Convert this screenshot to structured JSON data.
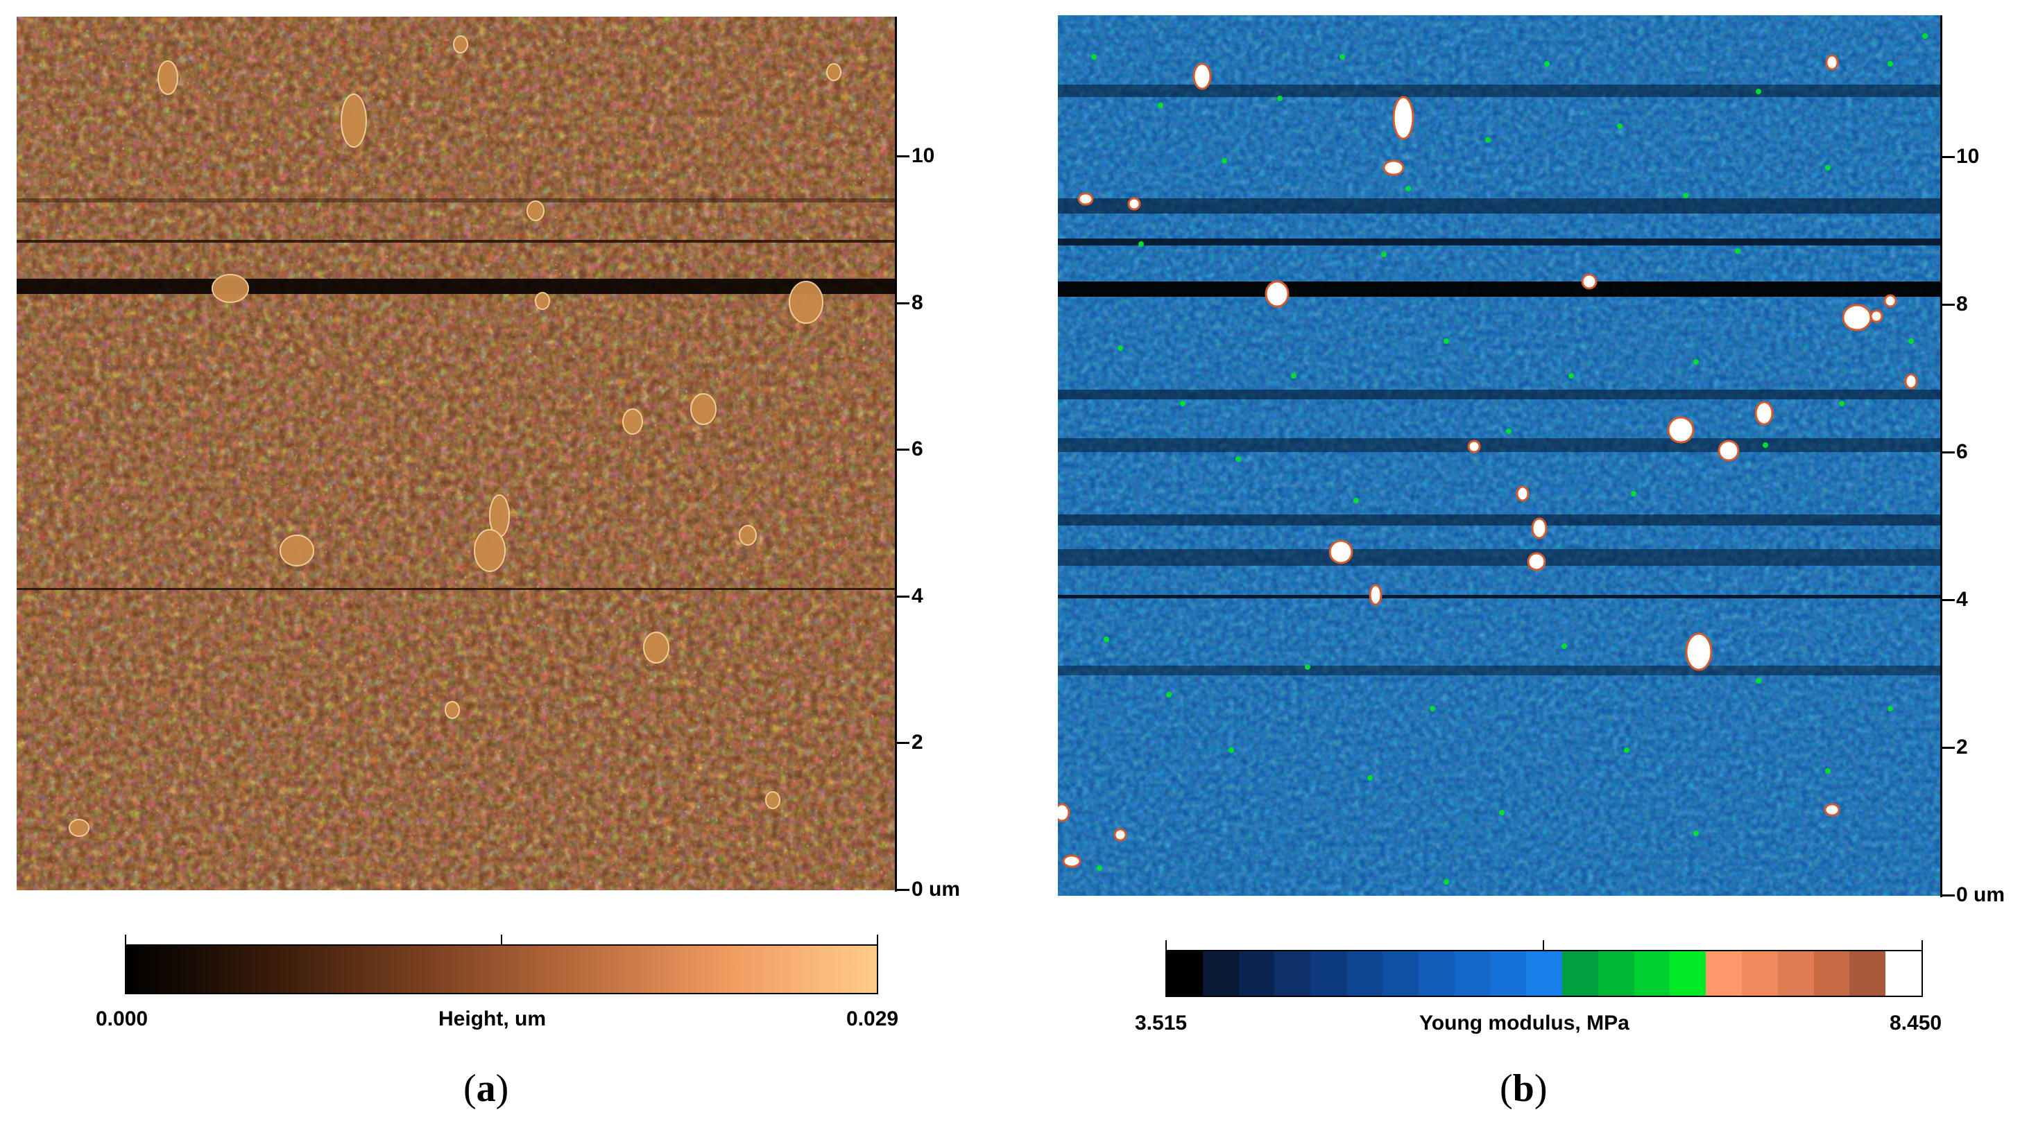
{
  "panel_a": {
    "label_open": "(",
    "label_letter": "a",
    "label_close": ")",
    "y_axis_ticks": [
      "0 um",
      "2",
      "4",
      "6",
      "8",
      "10"
    ],
    "y_axis_values_um": [
      0,
      2,
      4,
      6,
      8,
      10
    ],
    "y_axis_max_um": 11.9,
    "colorbar": {
      "min_label": "0.000",
      "title": "Height, um",
      "max_label": "0.029",
      "colors": [
        "#000000",
        "#3a1c0a",
        "#7a4020",
        "#b86a3c",
        "#f09a60",
        "#ffcc88"
      ]
    }
  },
  "panel_b": {
    "label_open": "(",
    "label_letter": "b",
    "label_close": ")",
    "y_axis_ticks": [
      "0 um",
      "2",
      "4",
      "6",
      "8",
      "10"
    ],
    "y_axis_values_um": [
      0,
      2,
      4,
      6,
      8,
      10
    ],
    "y_axis_max_um": 11.9,
    "colorbar": {
      "min_label": "3.515",
      "title": "Young modulus, MPa",
      "max_label": "8.450",
      "segments": [
        "#000000",
        "#0a1a36",
        "#0b2552",
        "#0c3068",
        "#0d3a7e",
        "#0e4592",
        "#1050a4",
        "#125bb6",
        "#1466c8",
        "#1672da",
        "#187eea",
        "#00a040",
        "#00b838",
        "#00d030",
        "#00ea28",
        "#ff9868",
        "#f08a5e",
        "#e07c54",
        "#c86c48",
        "#a85a3a",
        "#ffffff"
      ]
    }
  }
}
